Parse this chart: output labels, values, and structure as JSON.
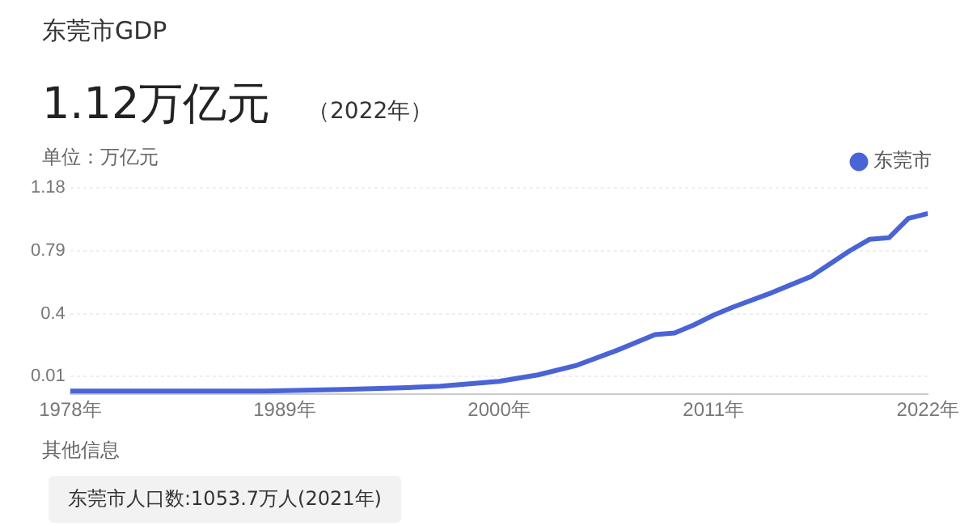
{
  "chart_data": {
    "type": "line",
    "title": "东莞市GDP",
    "subtitle": "1.12万亿元",
    "ylabel": "单位：万亿元",
    "annotations": [
      "（2022年）",
      "其他信息",
      "东莞市人口数:1053.7万人(2021年)"
    ],
    "x": [
      1978,
      1988,
      1992,
      1995,
      1997,
      2000,
      2002,
      2004,
      2006,
      2008,
      2009,
      2010,
      2011,
      2012,
      2014,
      2015,
      2016,
      2017,
      2018,
      2019,
      2020,
      2021,
      2022
    ],
    "series": [
      {
        "name": "东莞市",
        "color": "#4a64d6",
        "values": [
          -0.08,
          -0.08,
          -0.07,
          -0.06,
          -0.05,
          -0.02,
          0.02,
          0.08,
          0.17,
          0.27,
          0.28,
          0.33,
          0.39,
          0.44,
          0.53,
          0.58,
          0.63,
          0.71,
          0.79,
          0.86,
          0.87,
          0.99,
          1.02
        ]
      }
    ],
    "xlim": [
      1978,
      2022
    ],
    "xticks": [
      {
        "value": 1978,
        "label": "1978年"
      },
      {
        "value": 1989,
        "label": "1989年"
      },
      {
        "value": 2000,
        "label": "2000年"
      },
      {
        "value": 2011,
        "label": "2011年"
      },
      {
        "value": 2022,
        "label": "2022年"
      }
    ],
    "ylim": [
      -0.1,
      1.18
    ],
    "yticks": [
      0.01,
      0.4,
      0.79,
      1.18
    ],
    "grid": "y",
    "legend": "top right",
    "marker": "none",
    "line_style": "solid"
  }
}
